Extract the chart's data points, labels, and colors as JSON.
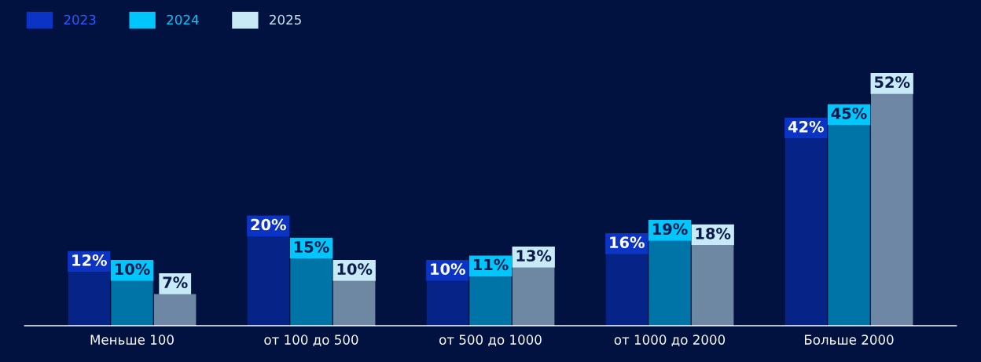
{
  "chart_data": {
    "type": "bar",
    "categories": [
      "Меньше 100",
      "от 100 до 500",
      "от 500 до 1000",
      "от 1000 до 2000",
      "Больше 2000"
    ],
    "series": [
      {
        "name": "2023",
        "color": "#0b33c4",
        "values": [
          12,
          20,
          10,
          16,
          42
        ],
        "value_labels": [
          "12%",
          "20%",
          "10%",
          "16%",
          "42%"
        ]
      },
      {
        "name": "2024",
        "color": "#00c6fc",
        "values": [
          10,
          15,
          11,
          19,
          45
        ],
        "value_labels": [
          "10%",
          "15%",
          "11%",
          "19%",
          "45%"
        ]
      },
      {
        "name": "2025",
        "color": "#c8eaf6",
        "values": [
          7,
          10,
          13,
          18,
          52
        ],
        "value_labels": [
          "7%",
          "10%",
          "13%",
          "18%",
          "52%"
        ]
      }
    ],
    "legend": "top left",
    "grid": false,
    "tick_labels": "x"
  }
}
